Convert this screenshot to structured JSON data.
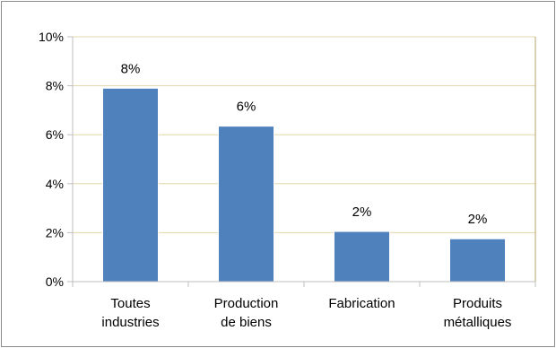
{
  "chart_data": {
    "type": "bar",
    "categories": [
      [
        "Toutes",
        "industries"
      ],
      [
        "Production",
        "de biens"
      ],
      [
        "Fabrication"
      ],
      [
        "Produits",
        "métalliques"
      ]
    ],
    "values": [
      7.9,
      6.35,
      2.05,
      1.75
    ],
    "data_labels": [
      "8%",
      "6%",
      "2%",
      "2%"
    ],
    "y_ticks": [
      0,
      2,
      4,
      6,
      8,
      10
    ],
    "y_tick_labels": [
      "0%",
      "2%",
      "4%",
      "6%",
      "8%",
      "10%"
    ],
    "ylim": [
      0,
      10
    ],
    "grid": true,
    "colors": {
      "bar": "#4f81bd",
      "grid": "#e2d7a8",
      "axis": "#bfbfbf",
      "plot_border": "#b5a36a"
    }
  }
}
